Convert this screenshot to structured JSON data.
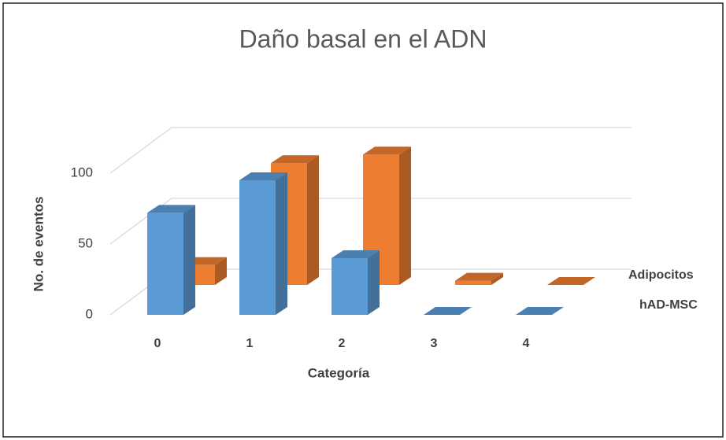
{
  "chart_data": {
    "type": "bar3d",
    "title": "Daño basal en el ADN",
    "x_label": "Categoría",
    "y_label": "No. de eventos",
    "categories": [
      "0",
      "1",
      "2",
      "3",
      "4"
    ],
    "series": [
      {
        "name": "hAD-MSC",
        "color": "#5b9bd5",
        "values": [
          72,
          95,
          40,
          0,
          0
        ]
      },
      {
        "name": "Adipocitos",
        "color": "#ed7d31",
        "values": [
          14,
          86,
          92,
          3,
          0
        ]
      }
    ],
    "ylim": [
      0,
      100
    ],
    "yticks": [
      0,
      50,
      100
    ],
    "grid": true
  }
}
